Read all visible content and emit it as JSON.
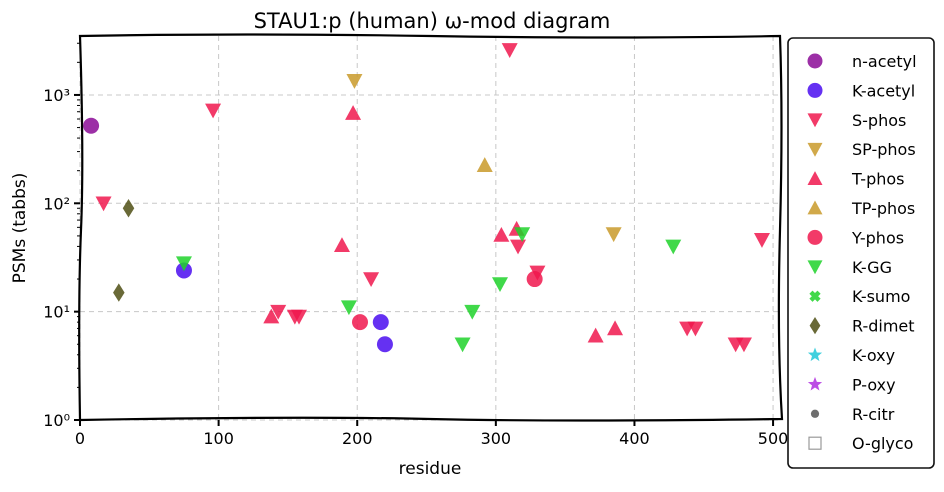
{
  "chart_data": {
    "type": "scatter",
    "title": "STAU1:p (human) ω-mod diagram",
    "xlabel": "residue",
    "ylabel": "PSMs (tabbs)",
    "xlim": [
      0,
      505
    ],
    "ylim": [
      1,
      3500
    ],
    "y_scale": "log",
    "x_ticks": [
      0,
      100,
      200,
      300,
      400,
      500
    ],
    "y_ticks": [
      1,
      10,
      100,
      1000
    ],
    "y_tick_labels": [
      "10⁰",
      "10¹",
      "10²",
      "10³"
    ],
    "grid": true,
    "legend_position": "right",
    "series": [
      {
        "name": "n-acetyl",
        "marker": "circle",
        "color": "#8b0a96",
        "points": [
          [
            8,
            520
          ]
        ]
      },
      {
        "name": "K-acetyl",
        "marker": "circle",
        "color": "#4a0df0",
        "points": [
          [
            75,
            24
          ],
          [
            217,
            8
          ],
          [
            220,
            5
          ]
        ]
      },
      {
        "name": "S-phos",
        "marker": "triangle-down",
        "color": "#f0184e",
        "points": [
          [
            17,
            100
          ],
          [
            96,
            720
          ],
          [
            143,
            10
          ],
          [
            155,
            9
          ],
          [
            158,
            9
          ],
          [
            210,
            20
          ],
          [
            316,
            40
          ],
          [
            310,
            2600
          ],
          [
            330,
            23
          ],
          [
            438,
            7
          ],
          [
            444,
            7
          ],
          [
            473,
            5
          ],
          [
            479,
            5
          ],
          [
            492,
            46
          ]
        ]
      },
      {
        "name": "SP-phos",
        "marker": "triangle-down",
        "color": "#c99a2a",
        "points": [
          [
            198,
            1350
          ],
          [
            385,
            52
          ]
        ]
      },
      {
        "name": "T-phos",
        "marker": "triangle-up",
        "color": "#f0184e",
        "points": [
          [
            138,
            9
          ],
          [
            189,
            41
          ],
          [
            197,
            680
          ],
          [
            304,
            51
          ],
          [
            315,
            58
          ],
          [
            372,
            6
          ],
          [
            386,
            7
          ]
        ]
      },
      {
        "name": "TP-phos",
        "marker": "triangle-up",
        "color": "#c99a2a",
        "points": [
          [
            292,
            225
          ]
        ]
      },
      {
        "name": "Y-phos",
        "marker": "circle",
        "color": "#f0184e",
        "points": [
          [
            202,
            8
          ],
          [
            328,
            20
          ]
        ]
      },
      {
        "name": "K-GG",
        "marker": "triangle-down",
        "color": "#1ed22a",
        "points": [
          [
            75,
            28
          ],
          [
            194,
            11
          ],
          [
            276,
            5
          ],
          [
            283,
            10
          ],
          [
            303,
            18
          ],
          [
            319,
            52
          ],
          [
            428,
            40
          ]
        ]
      },
      {
        "name": "K-sumo",
        "marker": "x",
        "color": "#1ed22a",
        "points": []
      },
      {
        "name": "R-dimet",
        "marker": "diamond",
        "color": "#4f4f14",
        "points": [
          [
            28,
            15
          ],
          [
            35,
            90
          ]
        ]
      },
      {
        "name": "K-oxy",
        "marker": "star",
        "color": "#20c8d8",
        "points": []
      },
      {
        "name": "P-oxy",
        "marker": "star",
        "color": "#b02ee0",
        "points": []
      },
      {
        "name": "R-citr",
        "marker": "dot",
        "color": "#555555",
        "points": []
      },
      {
        "name": "O-glyco",
        "marker": "square-open",
        "color": "#999999",
        "points": []
      }
    ]
  }
}
